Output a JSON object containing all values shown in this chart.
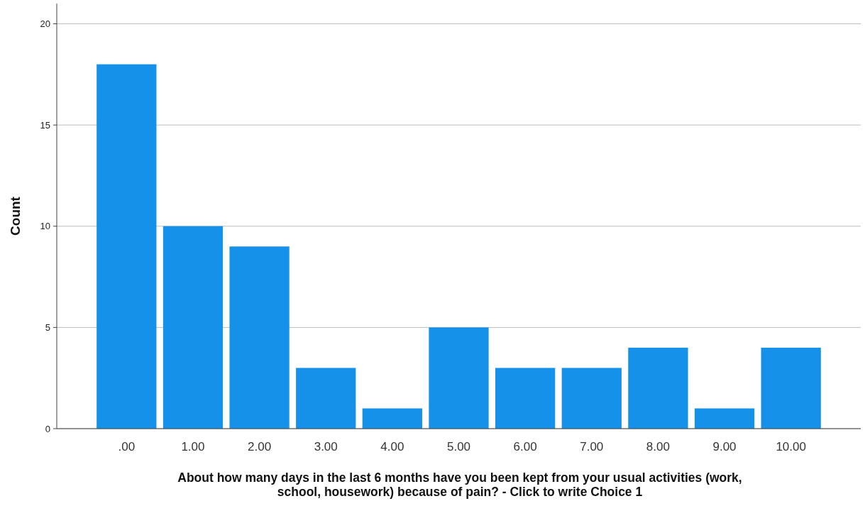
{
  "chart_data": {
    "type": "bar",
    "xlabel": "About how many days in the last 6 months have you been kept from your usual activities (work, school, housework) because of pain? - Click to write Choice 1",
    "ylabel": "Count",
    "categories": [
      ".00",
      "1.00",
      "2.00",
      "3.00",
      "4.00",
      "5.00",
      "6.00",
      "7.00",
      "8.00",
      "9.00",
      "10.00"
    ],
    "values": [
      18,
      10,
      9,
      3,
      1,
      5,
      3,
      3,
      4,
      1,
      4
    ],
    "color": "#1591ea",
    "ylim": [
      0,
      21
    ],
    "yticks": [
      0,
      5,
      10,
      15,
      20
    ],
    "grid": "y"
  }
}
